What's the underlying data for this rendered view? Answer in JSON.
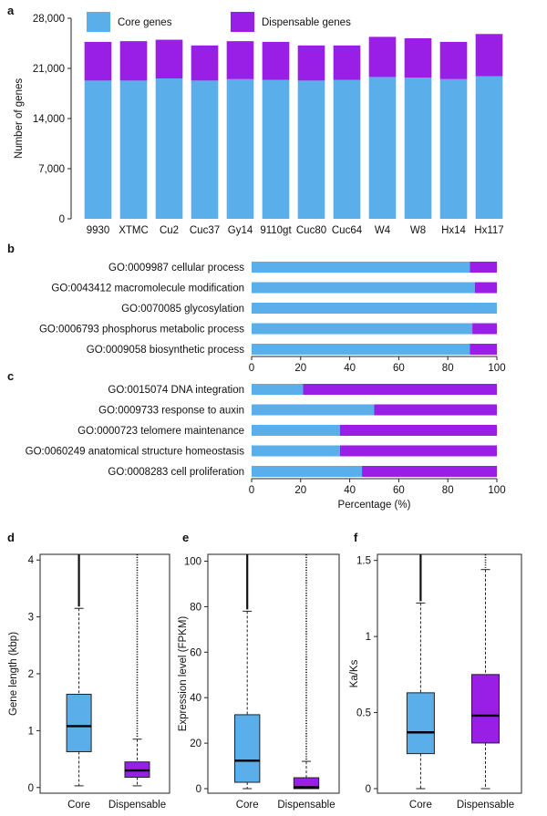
{
  "panel_labels": {
    "a": "a",
    "b": "b",
    "c": "c",
    "d": "d",
    "e": "e",
    "f": "f"
  },
  "colors": {
    "core": "#5aaeea",
    "dispensable": "#9a1fe6"
  },
  "chart_data": [
    {
      "panel": "a",
      "type": "bar",
      "stacked": true,
      "categories": [
        "9930",
        "XTMC",
        "Cu2",
        "Cuc37",
        "Gy14",
        "9110gt",
        "Cuc80",
        "Cuc64",
        "W4",
        "W8",
        "Hx14",
        "Hx117"
      ],
      "series": [
        {
          "name": "Core genes",
          "color": "#5aaeea",
          "values": [
            19300,
            19300,
            19600,
            19300,
            19500,
            19400,
            19300,
            19400,
            19800,
            19700,
            19500,
            19900
          ]
        },
        {
          "name": "Dispensable genes",
          "color": "#9a1fe6",
          "values": [
            5400,
            5500,
            5400,
            4900,
            5300,
            5300,
            4900,
            4800,
            5600,
            5500,
            5200,
            5900
          ]
        }
      ],
      "ylabel": "Number of genes",
      "yticks": [
        "0",
        "7,000",
        "14,000",
        "21,000",
        "28,000"
      ],
      "ylim": [
        0,
        28000
      ],
      "legend": "top"
    },
    {
      "panel": "b",
      "type": "bar",
      "orientation": "horizontal",
      "stacked": true,
      "categories": [
        "GO:0009987 cellular process",
        "GO:0043412 macromolecule modification",
        "GO:0070085 glycosylation",
        "GO:0006793 phosphorus metabolic process",
        "GO:0009058 biosynthetic process"
      ],
      "series": [
        {
          "color": "#5aaeea",
          "values": [
            89,
            91,
            100,
            90,
            89
          ]
        },
        {
          "color": "#9a1fe6",
          "values": [
            11,
            9,
            0,
            10,
            11
          ]
        }
      ],
      "xticks": [
        "0",
        "20",
        "40",
        "60",
        "80",
        "100"
      ],
      "xlim": [
        0,
        100
      ]
    },
    {
      "panel": "c",
      "type": "bar",
      "orientation": "horizontal",
      "stacked": true,
      "categories": [
        "GO:0015074 DNA integration",
        "GO:0009733 response to auxin",
        "GO:0000723 telomere maintenance",
        "GO:0060249 anatomical structure homeostasis",
        "GO:0008283 cell proliferation"
      ],
      "series": [
        {
          "color": "#5aaeea",
          "values": [
            21,
            50,
            36,
            36,
            45
          ]
        },
        {
          "color": "#9a1fe6",
          "values": [
            79,
            50,
            64,
            64,
            55
          ]
        }
      ],
      "xticks": [
        "0",
        "20",
        "40",
        "60",
        "80",
        "100"
      ],
      "xlim": [
        0,
        100
      ],
      "xlabel": "Percentage (%)"
    },
    {
      "panel": "d",
      "type": "box",
      "categories": [
        "Core",
        "Dispensable"
      ],
      "boxes": [
        {
          "color": "#5aaeea",
          "whisker_low": 0.03,
          "q1": 0.63,
          "median": 1.08,
          "q3": 1.64,
          "whisker_high": 3.15,
          "outliers_from": 3.15,
          "outliers_to": 4.1
        },
        {
          "color": "#9a1fe6",
          "whisker_low": 0.03,
          "q1": 0.18,
          "median": 0.3,
          "q3": 0.45,
          "whisker_high": 0.85,
          "outliers_from": 0.85,
          "outliers_to": 4.1
        }
      ],
      "ylabel": "Gene length (kbp)",
      "yticks": [
        "0",
        "1",
        "2",
        "3",
        "4"
      ],
      "ylim": [
        -0.1,
        4.1
      ]
    },
    {
      "panel": "e",
      "type": "box",
      "categories": [
        "Core",
        "Dispensable"
      ],
      "boxes": [
        {
          "color": "#5aaeea",
          "whisker_low": 0,
          "q1": 2.8,
          "median": 12.3,
          "q3": 32.5,
          "whisker_high": 78,
          "outliers_from": 78,
          "outliers_to": 103
        },
        {
          "color": "#9a1fe6",
          "whisker_low": 0,
          "q1": 0,
          "median": 0.6,
          "q3": 4.8,
          "whisker_high": 12,
          "outliers_from": 12,
          "outliers_to": 103
        }
      ],
      "ylabel": "Expression level (FPKM)",
      "yticks": [
        "0",
        "20",
        "40",
        "60",
        "80",
        "100"
      ],
      "ylim": [
        -2,
        103
      ]
    },
    {
      "panel": "f",
      "type": "box",
      "categories": [
        "Core",
        "Dispensable"
      ],
      "boxes": [
        {
          "color": "#5aaeea",
          "whisker_low": 0,
          "q1": 0.23,
          "median": 0.37,
          "q3": 0.63,
          "whisker_high": 1.22,
          "outliers_from": 1.22,
          "outliers_to": 1.54
        },
        {
          "color": "#9a1fe6",
          "whisker_low": 0,
          "q1": 0.3,
          "median": 0.48,
          "q3": 0.75,
          "whisker_high": 1.44,
          "outliers_from": 1.44,
          "outliers_to": 1.54
        }
      ],
      "ylabel": "Ka/Ks",
      "yticks": [
        "0",
        "0.5",
        "1",
        "1.5"
      ],
      "ylim": [
        -0.03,
        1.54
      ]
    }
  ]
}
